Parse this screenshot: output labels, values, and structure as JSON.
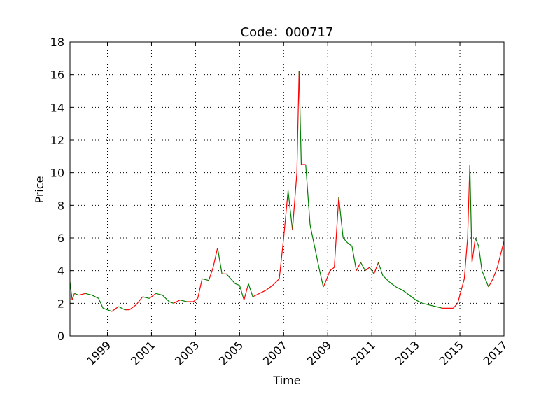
{
  "chart_data": {
    "type": "candlestick",
    "title": "Code：000717",
    "xlabel": "Time",
    "ylabel": "Price",
    "xlim": [
      1997.3,
      2017.0
    ],
    "ylim": [
      0,
      18
    ],
    "x_ticks": [
      1999,
      2001,
      2003,
      2005,
      2007,
      2009,
      2011,
      2013,
      2015,
      2017
    ],
    "x_tick_labels": [
      "1999",
      "2001",
      "2003",
      "2005",
      "2007",
      "2009",
      "2011",
      "2013",
      "2015",
      "2017"
    ],
    "y_ticks": [
      0,
      2,
      4,
      6,
      8,
      10,
      12,
      14,
      16,
      18
    ],
    "y_tick_labels": [
      "0",
      "2",
      "4",
      "6",
      "8",
      "10",
      "12",
      "14",
      "16",
      "18"
    ],
    "grid": true,
    "colors": {
      "up": "#ff0000",
      "down": "#008000",
      "grid": "#000000"
    },
    "series": [
      {
        "x": [
          1997.3,
          1997.4,
          1997.5,
          1997.7,
          1998.0,
          1998.3,
          1998.6,
          1998.8,
          1999.0,
          1999.2,
          1999.5,
          1999.8,
          2000.0,
          2000.3,
          2000.6,
          2000.9,
          2001.2,
          2001.5,
          2001.8,
          2002.0,
          2002.3,
          2002.6,
          2002.9,
          2003.1,
          2003.3,
          2003.6,
          2003.8,
          2004.0,
          2004.2,
          2004.4,
          2004.6,
          2004.8,
          2005.0,
          2005.2,
          2005.4,
          2005.6,
          2005.9,
          2006.2,
          2006.5,
          2006.8,
          2007.0,
          2007.2,
          2007.4,
          2007.6,
          2007.7,
          2007.8,
          2008.0,
          2008.2,
          2008.4,
          2008.6,
          2008.8,
          2008.9,
          2009.1,
          2009.3,
          2009.5,
          2009.7,
          2009.9,
          2010.1,
          2010.3,
          2010.5,
          2010.7,
          2010.9,
          2011.1,
          2011.3,
          2011.5,
          2011.8,
          2012.1,
          2012.4,
          2012.7,
          2013.0,
          2013.3,
          2013.6,
          2013.9,
          2014.2,
          2014.5,
          2014.7,
          2014.9,
          2015.1,
          2015.2,
          2015.35,
          2015.45,
          2015.55,
          2015.7,
          2015.85,
          2016.0,
          2016.3,
          2016.5,
          2016.7,
          2016.85,
          2017.0
        ],
        "close": [
          3.3,
          2.2,
          2.6,
          2.5,
          2.6,
          2.5,
          2.3,
          1.7,
          1.6,
          1.5,
          1.8,
          1.6,
          1.6,
          1.9,
          2.4,
          2.3,
          2.6,
          2.5,
          2.1,
          2.0,
          2.2,
          2.1,
          2.1,
          2.3,
          3.5,
          3.4,
          4.2,
          5.4,
          3.8,
          3.8,
          3.5,
          3.2,
          3.1,
          2.2,
          3.2,
          2.4,
          2.6,
          2.8,
          3.1,
          3.5,
          6.0,
          8.9,
          6.5,
          10.0,
          16.2,
          10.5,
          10.5,
          6.8,
          5.5,
          4.2,
          3.0,
          3.3,
          4.0,
          4.2,
          8.5,
          6.0,
          5.7,
          5.5,
          4.0,
          4.5,
          4.0,
          4.2,
          3.8,
          4.5,
          3.7,
          3.3,
          3.0,
          2.8,
          2.5,
          2.2,
          2.0,
          1.9,
          1.8,
          1.7,
          1.7,
          1.7,
          2.0,
          3.0,
          3.5,
          6.0,
          10.5,
          4.5,
          6.0,
          5.5,
          4.0,
          3.0,
          3.5,
          4.2,
          5.0,
          5.8
        ]
      }
    ]
  }
}
